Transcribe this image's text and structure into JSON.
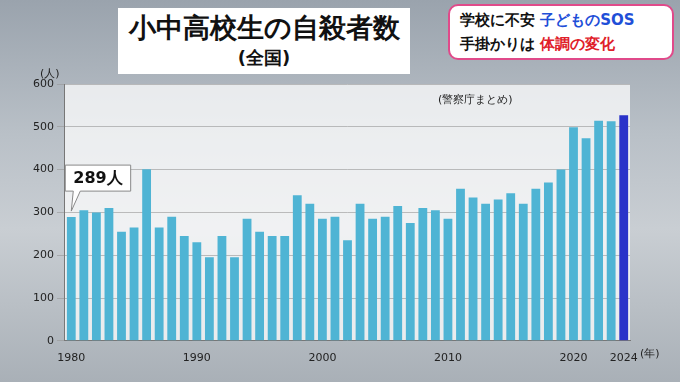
{
  "chart_data": {
    "type": "bar",
    "title": "小中高校生の自殺者数",
    "subtitle": "(全国)",
    "source": "(警察庁まとめ)",
    "y_label": "(人)",
    "x_label": "(年)",
    "categories": [
      "1980",
      null,
      null,
      null,
      null,
      null,
      null,
      null,
      null,
      null,
      "1990",
      null,
      null,
      null,
      null,
      null,
      null,
      null,
      null,
      null,
      "2000",
      null,
      null,
      null,
      null,
      null,
      null,
      null,
      null,
      null,
      "2010",
      null,
      null,
      null,
      null,
      null,
      null,
      null,
      null,
      null,
      "2020",
      null,
      null,
      null,
      "2024"
    ],
    "values": [
      289,
      305,
      300,
      310,
      255,
      265,
      401,
      265,
      290,
      245,
      230,
      195,
      245,
      195,
      285,
      255,
      245,
      245,
      340,
      320,
      285,
      290,
      235,
      320,
      285,
      290,
      315,
      275,
      310,
      305,
      285,
      355,
      335,
      320,
      330,
      345,
      320,
      355,
      370,
      400,
      499,
      473,
      514,
      513,
      527
    ],
    "colors": [
      "#4fb4d4",
      "#4fb4d4",
      "#4fb4d4",
      "#4fb4d4",
      "#4fb4d4",
      "#4fb4d4",
      "#4fb4d4",
      "#4fb4d4",
      "#4fb4d4",
      "#4fb4d4",
      "#4fb4d4",
      "#4fb4d4",
      "#4fb4d4",
      "#4fb4d4",
      "#4fb4d4",
      "#4fb4d4",
      "#4fb4d4",
      "#4fb4d4",
      "#4fb4d4",
      "#4fb4d4",
      "#4fb4d4",
      "#4fb4d4",
      "#4fb4d4",
      "#4fb4d4",
      "#4fb4d4",
      "#4fb4d4",
      "#4fb4d4",
      "#4fb4d4",
      "#4fb4d4",
      "#4fb4d4",
      "#4fb4d4",
      "#4fb4d4",
      "#4fb4d4",
      "#4fb4d4",
      "#4fb4d4",
      "#4fb4d4",
      "#4fb4d4",
      "#4fb4d4",
      "#4fb4d4",
      "#4fb4d4",
      "#4fb4d4",
      "#4fb4d4",
      "#4fb4d4",
      "#4fb4d4",
      "#2a33c9"
    ],
    "ylim": [
      0,
      600
    ],
    "yticks": [
      0,
      100,
      200,
      300,
      400,
      500,
      600
    ],
    "grid": true,
    "annotations": [
      {
        "text": "289人",
        "category": "1980"
      }
    ]
  },
  "banner": {
    "line1": [
      "学校に不安",
      "子どものSOS"
    ],
    "line2": [
      "手掛かりは",
      "体調の変化"
    ]
  }
}
